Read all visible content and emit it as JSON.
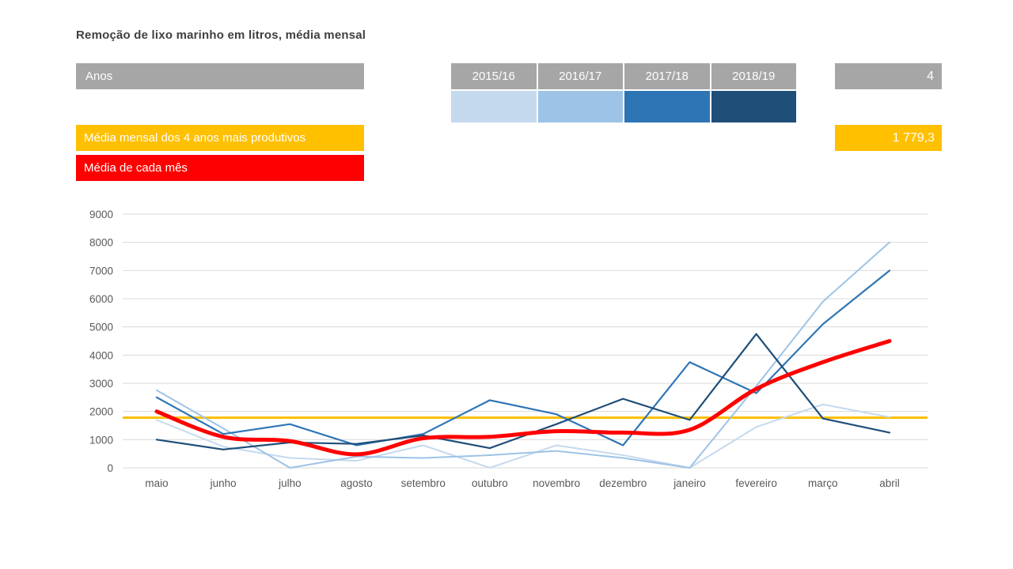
{
  "title": "Remoção de lixo marinho em litros, média mensal",
  "years_panel": {
    "label": "Anos",
    "count": "4",
    "years": [
      {
        "label": "2015/16",
        "color": "#c5d9ee"
      },
      {
        "label": "2016/17",
        "color": "#9dc3e6"
      },
      {
        "label": "2017/18",
        "color": "#2e75b6"
      },
      {
        "label": "2018/19",
        "color": "#1f4e79"
      }
    ]
  },
  "legend": {
    "productive_years_label": "Média mensal dos 4 anos mais produtivos",
    "productive_years_value": "1 779,3",
    "monthly_mean_label": "Média de cada mês",
    "productive_years_color": "#ffc000",
    "monthly_mean_color": "#ff0000"
  },
  "chart_data": {
    "type": "line",
    "categories": [
      "maio",
      "junho",
      "julho",
      "agosto",
      "setembro",
      "outubro",
      "novembro",
      "dezembro",
      "janeiro",
      "fevereiro",
      "março",
      "abril"
    ],
    "series": [
      {
        "name": "2015/16",
        "color": "#c5d9ee",
        "width": 2,
        "smooth": false,
        "values": [
          1700,
          750,
          350,
          250,
          800,
          0,
          800,
          450,
          0,
          1450,
          2250,
          1800
        ]
      },
      {
        "name": "2016/17",
        "color": "#9dc3e6",
        "width": 2,
        "smooth": false,
        "values": [
          2750,
          1400,
          0,
          400,
          350,
          450,
          600,
          350,
          0,
          2900,
          5900,
          8000
        ]
      },
      {
        "name": "2017/18",
        "color": "#2e75b6",
        "width": 2.2,
        "smooth": false,
        "values": [
          2500,
          1200,
          1550,
          800,
          1200,
          2400,
          1900,
          800,
          3750,
          2650,
          5100,
          7000
        ]
      },
      {
        "name": "2018/19",
        "color": "#1f4e79",
        "width": 2.2,
        "smooth": false,
        "values": [
          1000,
          650,
          900,
          850,
          1150,
          700,
          1550,
          2450,
          1700,
          4750,
          1750,
          1250
        ]
      },
      {
        "name": "Média de cada mês",
        "color": "#ff0000",
        "width": 5,
        "smooth": true,
        "values": [
          2000,
          1100,
          950,
          480,
          1050,
          1100,
          1300,
          1250,
          1350,
          2800,
          3750,
          4500
        ]
      }
    ],
    "reference_line": {
      "label": "Média mensal dos 4 anos mais produtivos",
      "value": 1779.3,
      "color": "#ffc000",
      "width": 3
    },
    "title": "Remoção de lixo marinho em litros, média mensal",
    "xlabel": "",
    "ylabel": "",
    "ylim": [
      0,
      9000
    ],
    "ytick_step": 1000,
    "grid": true,
    "legend_position": "none",
    "axis_label_color": "#595959",
    "grid_color": "#d9d9d9"
  }
}
